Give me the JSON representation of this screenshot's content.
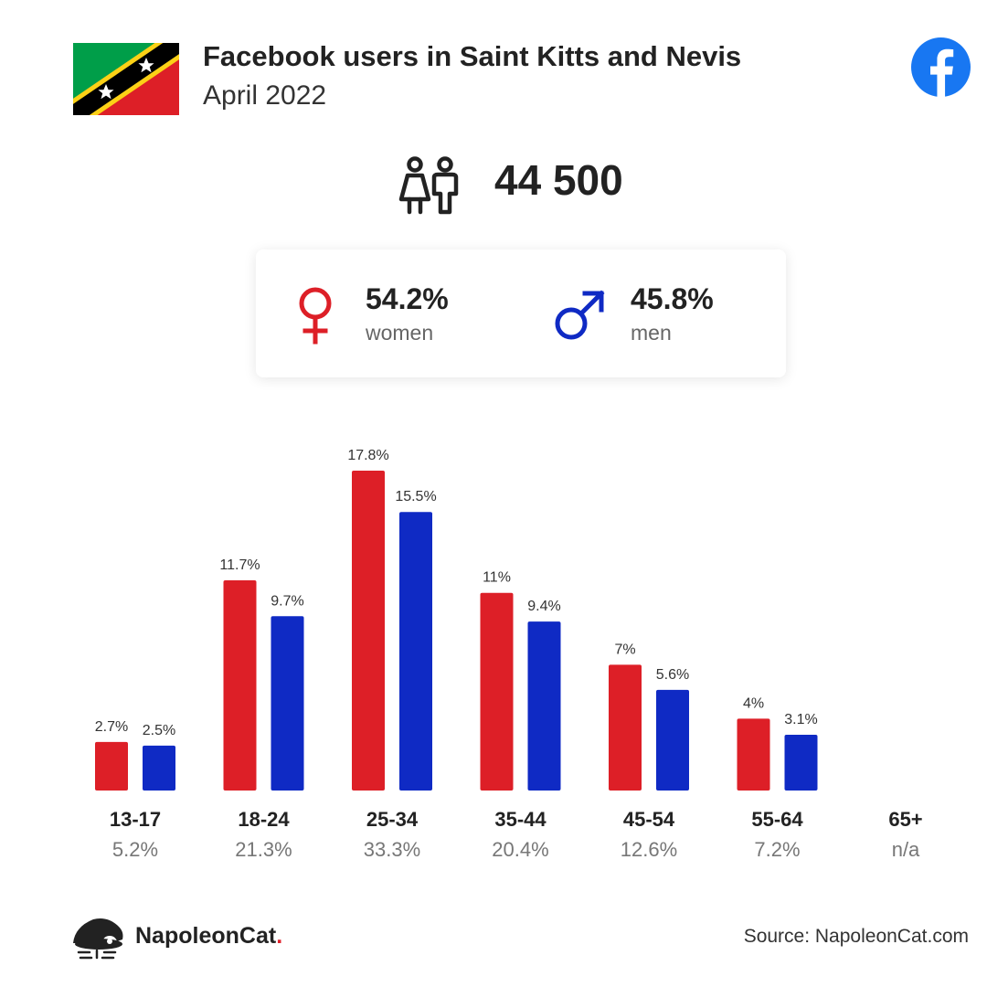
{
  "header": {
    "title": "Facebook users in Saint Kitts and Nevis",
    "subtitle": "April 2022",
    "flag_icon": "saint-kitts-and-nevis-flag-icon",
    "platform_icon": "facebook-logo-icon"
  },
  "summary": {
    "total_users": "44 500",
    "users_icon": "users-icon",
    "women": {
      "percent": "54.2%",
      "label": "women",
      "icon": "female-symbol-icon"
    },
    "men": {
      "percent": "45.8%",
      "label": "men",
      "icon": "male-symbol-icon"
    }
  },
  "chart_data": {
    "type": "bar",
    "categories": [
      "13-17",
      "18-24",
      "25-34",
      "35-44",
      "45-54",
      "55-64",
      "65+"
    ],
    "category_totals": [
      "5.2%",
      "21.3%",
      "33.3%",
      "20.4%",
      "12.6%",
      "7.2%",
      "n/a"
    ],
    "series": [
      {
        "values": [
          2.7,
          11.7,
          17.8,
          11,
          7,
          4,
          null
        ],
        "labels": [
          "2.7%",
          "11.7%",
          "17.8%",
          "11%",
          "7%",
          "4%",
          ""
        ],
        "color": "#dd1f27"
      },
      {
        "values": [
          2.5,
          9.7,
          15.5,
          9.4,
          5.6,
          3.1,
          null
        ],
        "labels": [
          "2.5%",
          "9.7%",
          "15.5%",
          "9.4%",
          "5.6%",
          "3.1%",
          ""
        ],
        "color": "#0f2ac4"
      }
    ],
    "ylim": [
      0,
      17.8
    ],
    "grid": false,
    "legend": "none"
  },
  "footer": {
    "brand_name": "NapoleonCat",
    "brand_dot": ".",
    "brand_icon": "napoleoncat-logo-icon",
    "source": "Source: NapoleonCat.com"
  },
  "colors": {
    "women": "#dd1f27",
    "men": "#0f2ac4",
    "facebook": "#1877f2"
  }
}
